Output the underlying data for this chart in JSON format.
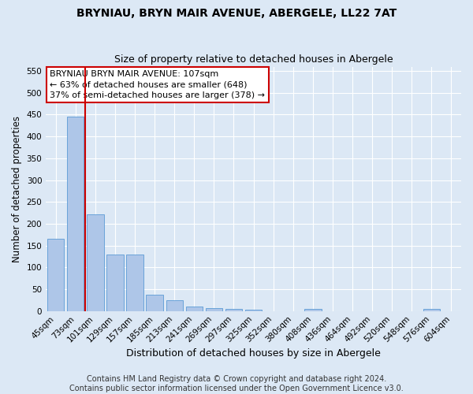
{
  "title1": "BRYNIAU, BRYN MAIR AVENUE, ABERGELE, LL22 7AT",
  "title2": "Size of property relative to detached houses in Abergele",
  "xlabel": "Distribution of detached houses by size in Abergele",
  "ylabel": "Number of detached properties",
  "bin_labels": [
    "45sqm",
    "73sqm",
    "101sqm",
    "129sqm",
    "157sqm",
    "185sqm",
    "213sqm",
    "241sqm",
    "269sqm",
    "297sqm",
    "325sqm",
    "352sqm",
    "380sqm",
    "408sqm",
    "436sqm",
    "464sqm",
    "492sqm",
    "520sqm",
    "548sqm",
    "576sqm",
    "604sqm"
  ],
  "bar_values": [
    165,
    445,
    222,
    130,
    130,
    38,
    25,
    10,
    6,
    5,
    4,
    0,
    0,
    5,
    0,
    0,
    0,
    0,
    0,
    5,
    0
  ],
  "bar_color": "#aec6e8",
  "bar_edge_color": "#5b9bd5",
  "vline_x_bar": 2,
  "vline_color": "#cc0000",
  "annotation_text": "BRYNIAU BRYN MAIR AVENUE: 107sqm\n← 63% of detached houses are smaller (648)\n37% of semi-detached houses are larger (378) →",
  "annotation_box_color": "#ffffff",
  "annotation_box_edge": "#cc0000",
  "ylim": [
    0,
    560
  ],
  "yticks": [
    0,
    50,
    100,
    150,
    200,
    250,
    300,
    350,
    400,
    450,
    500,
    550
  ],
  "bg_color": "#dce8f5",
  "plot_bg_color": "#dce8f5",
  "footer_text": "Contains HM Land Registry data © Crown copyright and database right 2024.\nContains public sector information licensed under the Open Government Licence v3.0.",
  "title1_fontsize": 10,
  "title2_fontsize": 9,
  "xlabel_fontsize": 9,
  "ylabel_fontsize": 8.5,
  "tick_fontsize": 7.5,
  "footer_fontsize": 7,
  "annot_fontsize": 8
}
